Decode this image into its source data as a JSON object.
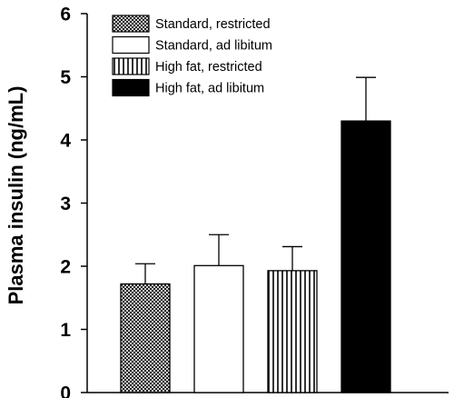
{
  "chart_data": {
    "type": "bar",
    "ylabel": "Plasma insulin (ng/mL)",
    "xlabel": "",
    "ylim": [
      0,
      6
    ],
    "yticks": [
      0,
      1,
      2,
      3,
      4,
      5,
      6
    ],
    "legend_position": "top-left",
    "grid": false,
    "series": [
      {
        "name": "Standard, restricted",
        "value": 1.72,
        "error": 0.32,
        "fill": "crosshatch"
      },
      {
        "name": "Standard, ad libitum",
        "value": 2.01,
        "error": 0.49,
        "fill": "white"
      },
      {
        "name": "High fat, restricted",
        "value": 1.93,
        "error": 0.38,
        "fill": "vertical-stripes"
      },
      {
        "name": "High fat, ad libitum",
        "value": 4.3,
        "error": 0.69,
        "fill": "black"
      }
    ]
  }
}
